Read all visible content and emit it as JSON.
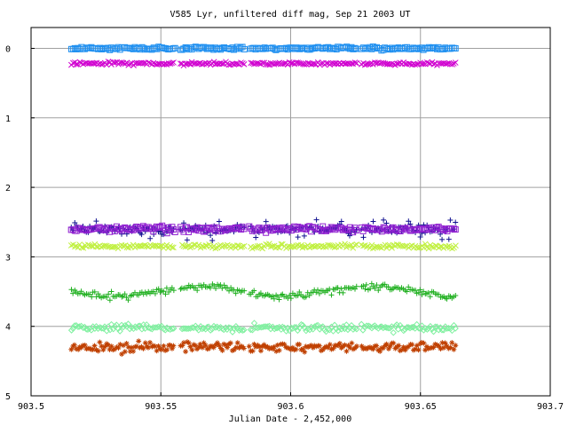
{
  "chart_data": {
    "type": "scatter",
    "title": "V585 Lyr, unfiltered diff mag, Sep 21 2003 UT",
    "xlabel": "Julian Date - 2,452,000",
    "ylabel": "",
    "xlim": [
      903.5,
      903.7
    ],
    "ylim": [
      5,
      -0.3
    ],
    "y_inverted": true,
    "grid": true,
    "x_ticks": [
      903.5,
      903.55,
      903.6,
      903.65,
      903.7
    ],
    "x_tick_labels": [
      "903.5",
      "903.55",
      "903.6",
      "903.65",
      "903.7"
    ],
    "y_ticks": [
      0,
      1,
      2,
      3,
      4,
      5
    ],
    "y_tick_labels": [
      "0",
      "1",
      "2",
      "3",
      "4",
      "5"
    ],
    "x_range_observed": [
      903.5155,
      903.6635
    ],
    "gaps": [
      [
        903.5555,
        903.5575
      ],
      [
        903.5825,
        903.584
      ],
      [
        903.6255,
        903.627
      ]
    ],
    "series": [
      {
        "marker": "square",
        "color": "#1e8ff0",
        "mean": 0.0,
        "scatter": 0.02,
        "amp": 0.0
      },
      {
        "marker": "cross",
        "color": "#d000d0",
        "mean": 0.22,
        "scatter": 0.02,
        "amp": 0.0
      },
      {
        "marker": "plus",
        "color": "#101090",
        "mean": 2.6,
        "scatter": 0.06,
        "amp": 0.0
      },
      {
        "marker": "square",
        "color": "#9020d0",
        "mean": 2.6,
        "scatter": 0.04,
        "amp": 0.0
      },
      {
        "marker": "cross",
        "color": "#c0f040",
        "mean": 2.85,
        "scatter": 0.03,
        "amp": 0.0
      },
      {
        "marker": "plus",
        "color": "#20b020",
        "mean": 3.5,
        "scatter": 0.05,
        "amp": 0.07
      },
      {
        "marker": "diamond",
        "color": "#80f0a0",
        "mean": 4.02,
        "scatter": 0.05,
        "amp": 0.0
      },
      {
        "marker": "star",
        "color": "#c04000",
        "mean": 4.3,
        "scatter": 0.07,
        "amp": 0.0
      }
    ]
  }
}
